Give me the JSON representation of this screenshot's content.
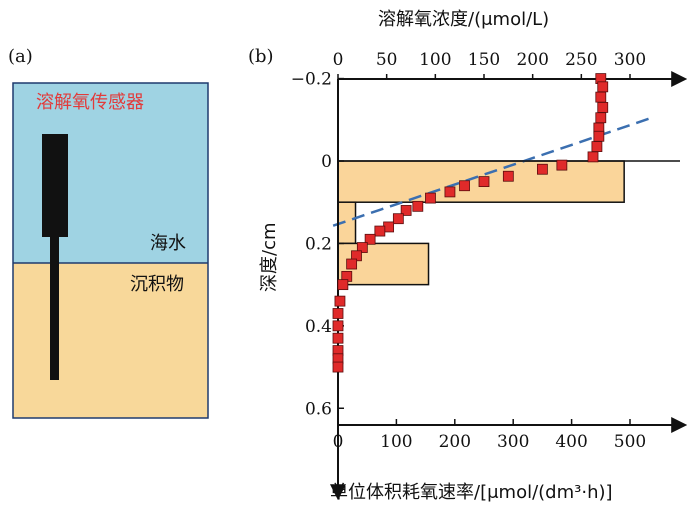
{
  "panel_a": {
    "label": "(a)",
    "sensor_label": "溶解氧传感器",
    "water_label": "海水",
    "sediment_label": "沉积物",
    "colors": {
      "water": "#9fd3e3",
      "sediment": "#f8d89a",
      "sensor": "#111111",
      "sensor_text": "#e23b3b",
      "border": "#1f3a6e"
    }
  },
  "panel_b": {
    "label": "(b)",
    "top_axis_label": "溶解氧浓度/(μmol/L)",
    "left_axis_label": "深度/cm",
    "bottom_axis_label": "单位体积耗氧速率/[μmol/(dm³·h)]",
    "top_ticks": [
      "0",
      "50",
      "100",
      "150",
      "200",
      "250",
      "300"
    ],
    "left_ticks": [
      "−0.2",
      "0",
      "0.2",
      "0.4",
      "0.6"
    ],
    "bottom_ticks": [
      "0",
      "100",
      "200",
      "300",
      "400",
      "500"
    ]
  },
  "chart_data": {
    "type": "scatter",
    "top_axis": {
      "range": [
        0,
        300
      ]
    },
    "bottom_axis": {
      "range": [
        0,
        600
      ]
    },
    "depth_axis": {
      "range": [
        -0.2,
        0.6
      ],
      "inverted": true
    },
    "profile_points": [
      {
        "o2": 270,
        "depth": -0.2
      },
      {
        "o2": 272,
        "depth": -0.18
      },
      {
        "o2": 270,
        "depth": -0.155
      },
      {
        "o2": 272,
        "depth": -0.13
      },
      {
        "o2": 270,
        "depth": -0.105
      },
      {
        "o2": 268,
        "depth": -0.08
      },
      {
        "o2": 268,
        "depth": -0.06
      },
      {
        "o2": 266,
        "depth": -0.035
      },
      {
        "o2": 262,
        "depth": -0.01
      },
      {
        "o2": 230,
        "depth": 0.01
      },
      {
        "o2": 210,
        "depth": 0.02
      },
      {
        "o2": 175,
        "depth": 0.037
      },
      {
        "o2": 150,
        "depth": 0.05
      },
      {
        "o2": 130,
        "depth": 0.06
      },
      {
        "o2": 115,
        "depth": 0.075
      },
      {
        "o2": 95,
        "depth": 0.09
      },
      {
        "o2": 82,
        "depth": 0.11
      },
      {
        "o2": 70,
        "depth": 0.12
      },
      {
        "o2": 62,
        "depth": 0.14
      },
      {
        "o2": 52,
        "depth": 0.16
      },
      {
        "o2": 43,
        "depth": 0.17
      },
      {
        "o2": 33,
        "depth": 0.19
      },
      {
        "o2": 25,
        "depth": 0.21
      },
      {
        "o2": 19,
        "depth": 0.23
      },
      {
        "o2": 14,
        "depth": 0.25
      },
      {
        "o2": 9,
        "depth": 0.28
      },
      {
        "o2": 5,
        "depth": 0.3
      },
      {
        "o2": 2,
        "depth": 0.34
      },
      {
        "o2": 0,
        "depth": 0.37
      },
      {
        "o2": 0,
        "depth": 0.4
      },
      {
        "o2": 0,
        "depth": 0.43
      },
      {
        "o2": 0,
        "depth": 0.46
      },
      {
        "o2": 0,
        "depth": 0.48
      },
      {
        "o2": 0,
        "depth": 0.5
      }
    ],
    "rate_bars": [
      {
        "depth_top": 0.0,
        "depth_bottom": 0.1,
        "rate": 490
      },
      {
        "depth_top": 0.1,
        "depth_bottom": 0.2,
        "rate": 30
      },
      {
        "depth_top": 0.2,
        "depth_bottom": 0.3,
        "rate": 155
      }
    ],
    "fit_line": [
      {
        "o2": -5,
        "depth": 0.157
      },
      {
        "o2": 320,
        "depth": -0.103
      }
    ],
    "colors": {
      "points": "#e02a2a",
      "bars": "#fad59a",
      "fit_line": "#3b6fb0"
    }
  }
}
